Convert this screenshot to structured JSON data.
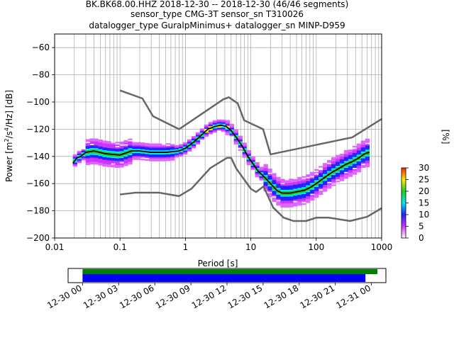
{
  "header": {
    "line1": "BK.BK68.00.HHZ   2018-12-30 -- 2018-12-30  (46/46 segments)",
    "line2": "sensor_type CMG-3T sensor_sn T310026",
    "line3": "datalogger_type GuralpMinimus+ datalogger_sn MINP-D959"
  },
  "chart_data": [
    {
      "type": "heatmap",
      "subtype": "probabilistic-power-spectral-density",
      "xlabel": "Period [s]",
      "ylabel": "Power [m²/s⁴/Hz] [dB]",
      "x_scale": "log",
      "xlim": [
        0.01,
        1000
      ],
      "ylim": [
        -200,
        -50
      ],
      "x_ticks": [
        0.01,
        0.1,
        1,
        10,
        100,
        1000
      ],
      "x_tick_labels": [
        "0.01",
        "0.1",
        "1",
        "10",
        "100",
        "1000"
      ],
      "y_ticks": [
        -60,
        -80,
        -100,
        -120,
        -140,
        -160,
        -180,
        -200
      ],
      "y_tick_labels": [
        "−60",
        "−80",
        "−100",
        "−120",
        "−140",
        "−160",
        "−180",
        "−200"
      ],
      "grid": true,
      "noise_model_high": {
        "x": [
          0.1,
          0.22,
          0.32,
          0.8,
          3.8,
          4.6,
          6.3,
          7.9,
          15.4,
          20,
          354.8,
          1000
        ],
        "y": [
          -91.5,
          -97.4,
          -110.5,
          -120,
          -98,
          -96.5,
          -101,
          -113.5,
          -120,
          -138.5,
          -126,
          -112.5
        ]
      },
      "noise_model_low": {
        "x": [
          0.1,
          0.17,
          0.4,
          0.8,
          1.24,
          2.4,
          4.3,
          5,
          6,
          10,
          12,
          15.6,
          21.9,
          31.6,
          45,
          70,
          101,
          154,
          328,
          600,
          1000
        ],
        "y": [
          -168,
          -166.7,
          -166.7,
          -169.2,
          -163.7,
          -148.6,
          -141.1,
          -141.1,
          -149,
          -163.8,
          -166.2,
          -162.1,
          -177.5,
          -185,
          -187.5,
          -187.5,
          -185,
          -185,
          -187.5,
          -184.4,
          -178
        ]
      },
      "mean_line": {
        "x": [
          0.019,
          0.022,
          0.025,
          0.03,
          0.04,
          0.06,
          0.1,
          0.15,
          0.2,
          0.3,
          0.5,
          0.8,
          1.0,
          1.3,
          1.7,
          2.2,
          2.8,
          3.5,
          4.2,
          5.0,
          6.0,
          7.5,
          9.0,
          11.0,
          13.0,
          16.0,
          20.0,
          25.0,
          30.0,
          40.0,
          50.0,
          65.0,
          80.0,
          100.0,
          130.0,
          170.0,
          220.0,
          280.0,
          350.0,
          450.0,
          550.0,
          650.0
        ],
        "y": [
          -145,
          -141,
          -140,
          -137,
          -136,
          -138,
          -139,
          -136,
          -136,
          -137,
          -137,
          -136,
          -134,
          -130,
          -125,
          -120,
          -118,
          -117,
          -118,
          -121,
          -126,
          -133,
          -140,
          -146,
          -151,
          -155,
          -160,
          -165,
          -167,
          -167,
          -166,
          -165,
          -163,
          -160,
          -156,
          -152,
          -149,
          -146,
          -144,
          -141,
          -138,
          -137
        ]
      },
      "colorbar": {
        "label": "[%]",
        "min": 0,
        "max": 30,
        "ticks": [
          0,
          5,
          10,
          15,
          20,
          25,
          30
        ],
        "tick_labels": [
          "0",
          "5",
          "10",
          "15",
          "20",
          "25",
          "30"
        ],
        "colormap": [
          "#ffffff",
          "#cc33ff",
          "#2222ff",
          "#00eeee",
          "#22cc22",
          "#ffee00",
          "#ff2200"
        ]
      },
      "colors": {
        "noise_model": "#666666",
        "mean_line": "#000000",
        "grid": "#b0b0b0"
      }
    },
    {
      "type": "bar",
      "subtype": "data-coverage-timeline",
      "x_tick_labels": [
        "12-30 00",
        "12-30 03",
        "12-30 06",
        "12-30 09",
        "12-30 12",
        "12-30 15",
        "12-30 18",
        "12-30 21",
        "12-31 00"
      ],
      "x_ticks_hours": [
        0,
        3,
        6,
        9,
        12,
        15,
        18,
        21,
        24
      ],
      "xlim_hours": [
        -1.2,
        25.2
      ],
      "series": [
        {
          "start_hour": 0,
          "end_hour": 24.5,
          "color": "#008000"
        },
        {
          "start_hour": 0,
          "end_hour": 23.5,
          "color": "#0000ff"
        }
      ]
    }
  ]
}
